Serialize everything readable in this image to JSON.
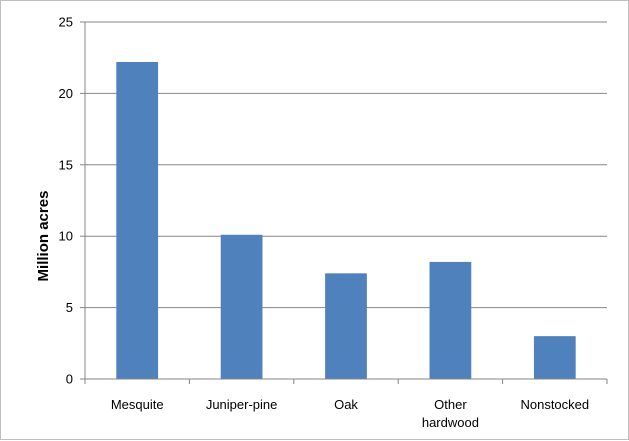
{
  "chart_data": {
    "type": "bar",
    "categories": [
      [
        "Mesquite"
      ],
      [
        "Juniper-pine"
      ],
      [
        "Oak"
      ],
      [
        "Other",
        "hardwood"
      ],
      [
        "Nonstocked"
      ]
    ],
    "values": [
      22.2,
      10.1,
      7.4,
      8.2,
      3.0
    ],
    "title": "",
    "xlabel": "",
    "ylabel": "Million acres",
    "ylim": [
      0,
      25
    ],
    "yticks": [
      0,
      5,
      10,
      15,
      20,
      25
    ],
    "grid": true,
    "legend": "none",
    "bar_color": "#4f81bd",
    "grid_color": "#868686",
    "axis_color": "#868686"
  }
}
